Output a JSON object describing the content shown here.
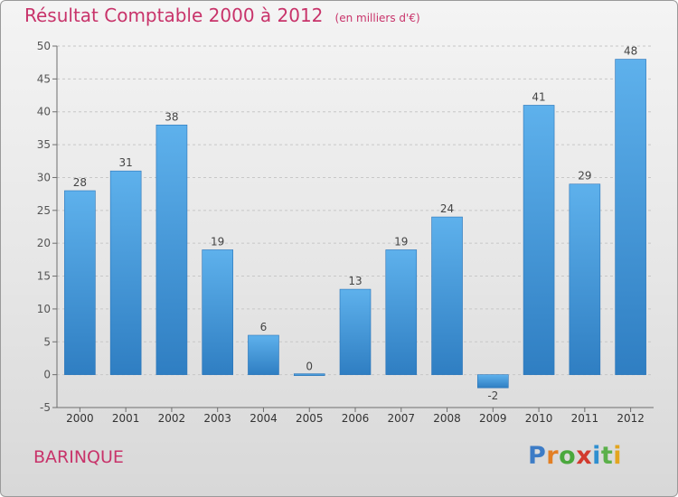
{
  "title": "Résultat Comptable 2000 à 2012",
  "subtitle": "(en milliers d'€)",
  "commune": "BARINQUE",
  "logo": {
    "letters": [
      "P",
      "r",
      "o",
      "x",
      "i",
      "t",
      "i"
    ],
    "colors": [
      "#3d7cc6",
      "#e37f24",
      "#4aa83d",
      "#d23a2e",
      "#2f8fd0",
      "#5bb04a",
      "#e3a51f"
    ]
  },
  "colors": {
    "title": "#c8336a",
    "bar_light": "#5eb1ec",
    "bar_dark": "#2f7ec2",
    "grid": "#c7c7c7",
    "axis": "#6e6e6e"
  },
  "chart_data": {
    "type": "bar",
    "title": "Résultat Comptable 2000 à 2012",
    "subtitle": "(en milliers d'€)",
    "xlabel": "",
    "ylabel": "",
    "categories": [
      "2000",
      "2001",
      "2002",
      "2003",
      "2004",
      "2005",
      "2006",
      "2007",
      "2008",
      "2009",
      "2010",
      "2011",
      "2012"
    ],
    "values": [
      28,
      31,
      38,
      19,
      6,
      0,
      13,
      19,
      24,
      -2,
      41,
      29,
      48
    ],
    "value_labels": [
      "28",
      "31",
      "38",
      "19",
      "6",
      "0",
      "13",
      "19",
      "24",
      "-2",
      "41",
      "29",
      "48"
    ],
    "y_ticks": [
      -5,
      0,
      5,
      10,
      15,
      20,
      25,
      30,
      35,
      40,
      45,
      50
    ],
    "ylim": [
      -5,
      50
    ],
    "grid": true,
    "legend": "none"
  }
}
